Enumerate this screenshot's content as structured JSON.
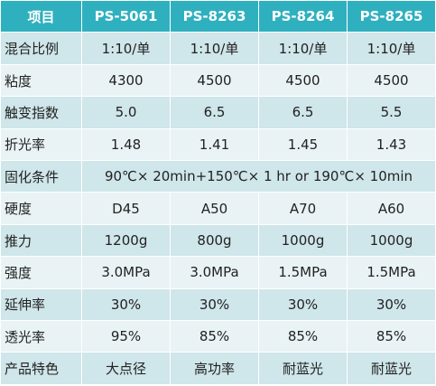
{
  "table": {
    "headers": [
      "项目",
      "PS-5061",
      "PS-8263",
      "PS-8264",
      "PS-8265"
    ],
    "rows": [
      {
        "label": "混合比例",
        "values": [
          "1:10/单",
          "1:10/单",
          "1:10/单",
          "1:10/单"
        ]
      },
      {
        "label": "粘度",
        "values": [
          "4300",
          "4500",
          "4500",
          "4500"
        ]
      },
      {
        "label": "触变指数",
        "values": [
          "5.0",
          "6.5",
          "6.5",
          "5.5"
        ]
      },
      {
        "label": "折光率",
        "values": [
          "1.48",
          "1.41",
          "1.45",
          "1.43"
        ]
      },
      {
        "label": "固化条件",
        "span_value": "90℃× 20min+150℃× 1 hr  or   190℃× 10min"
      },
      {
        "label": "硬度",
        "values": [
          "D45",
          "A50",
          "A70",
          "A60"
        ]
      },
      {
        "label": "推力",
        "values": [
          "1200g",
          "800g",
          "1000g",
          "1000g"
        ]
      },
      {
        "label": "强度",
        "values": [
          "3.0MPa",
          "3.0MPa",
          "1.5MPa",
          "1.5MPa"
        ]
      },
      {
        "label": "延伸率",
        "values": [
          "30%",
          "30%",
          "30%",
          "30%"
        ]
      },
      {
        "label": "透光率",
        "values": [
          "95%",
          "85%",
          "85%",
          "85%"
        ]
      },
      {
        "label": "产品特色",
        "values": [
          "大点径",
          "高功率",
          "耐蓝光",
          "耐蓝光"
        ]
      }
    ]
  },
  "colors": {
    "header_bg": "#2fb0bf",
    "band_row_bg": "#cfe6ea",
    "plain_row_bg": "#e9f3f5"
  }
}
